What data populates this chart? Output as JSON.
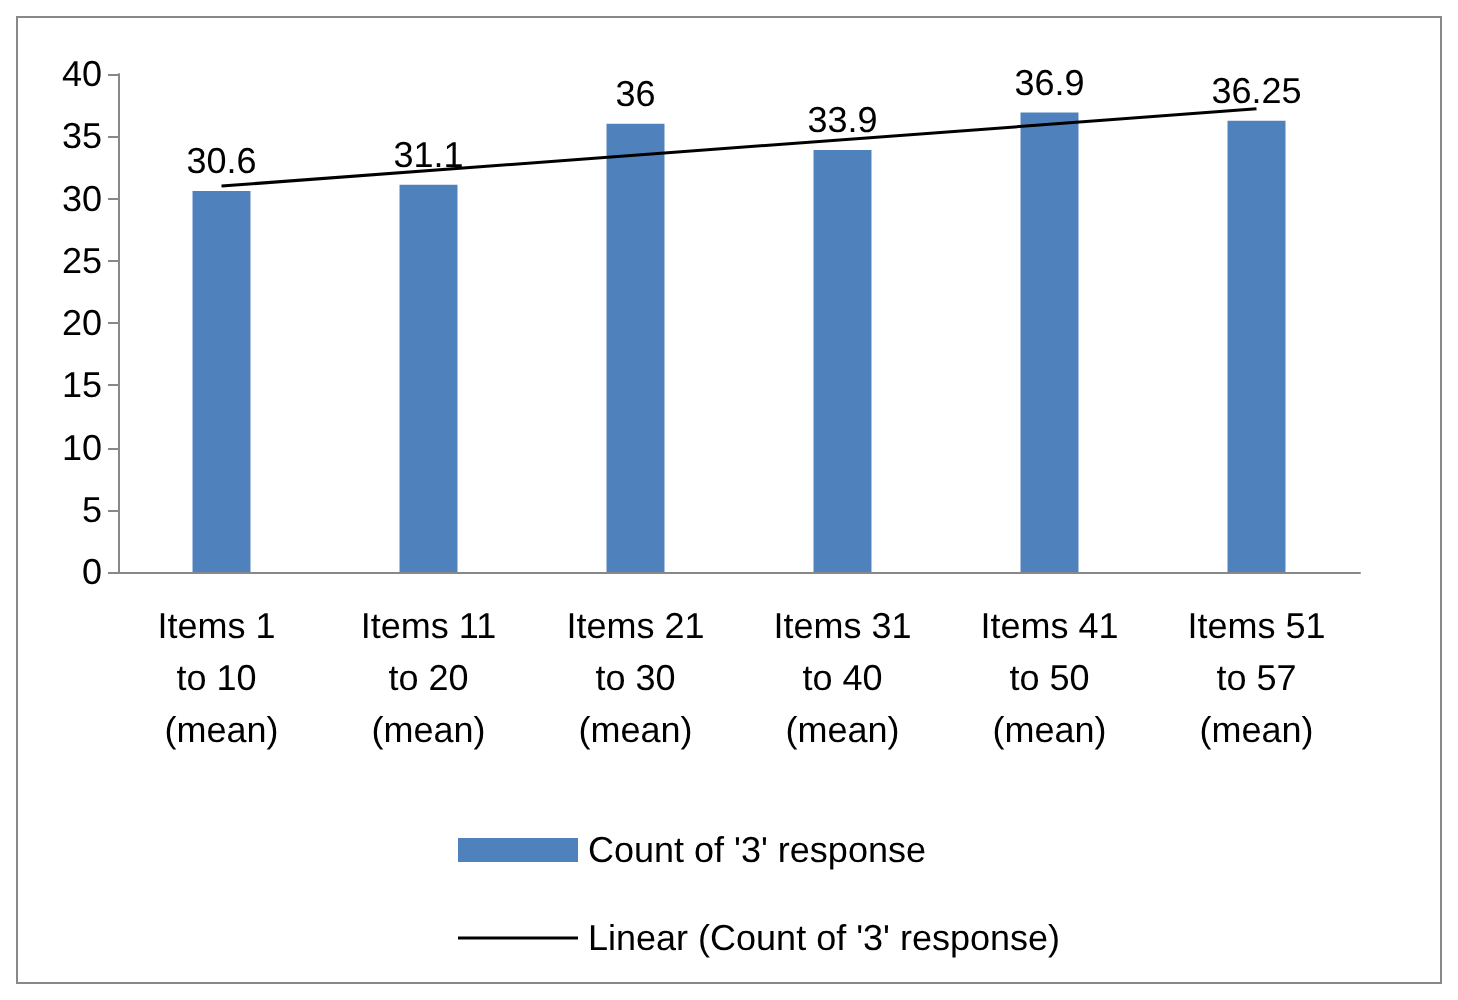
{
  "chart_data": {
    "type": "bar",
    "categories": [
      "Items 1 to 10 (mean)",
      "Items 11 to 20 (mean)",
      "Items 21 to 30 (mean)",
      "Items 31 to 40 (mean)",
      "Items 41 to 50 (mean)",
      "Items 51 to 57 (mean)"
    ],
    "series": [
      {
        "name": "Count of '3' response",
        "color": "#4f81bd",
        "values": [
          30.6,
          31.1,
          36,
          33.9,
          36.9,
          36.25
        ],
        "value_labels": [
          "30.6",
          "31.1",
          "36",
          "33.9",
          "36.9",
          "36.25"
        ]
      },
      {
        "name": "Linear (Count of '3' response)",
        "type": "line",
        "color": "#000000",
        "x": [
          "Items 1 to 10 (mean)",
          "Items 51 to 57 (mean)"
        ],
        "values": [
          31.0,
          37.2
        ],
        "marker": "none"
      }
    ],
    "ylim": [
      0,
      40
    ],
    "yticks": [
      0,
      5,
      10,
      15,
      20,
      25,
      30,
      35,
      40
    ],
    "grid": false,
    "legend": "bottom"
  }
}
